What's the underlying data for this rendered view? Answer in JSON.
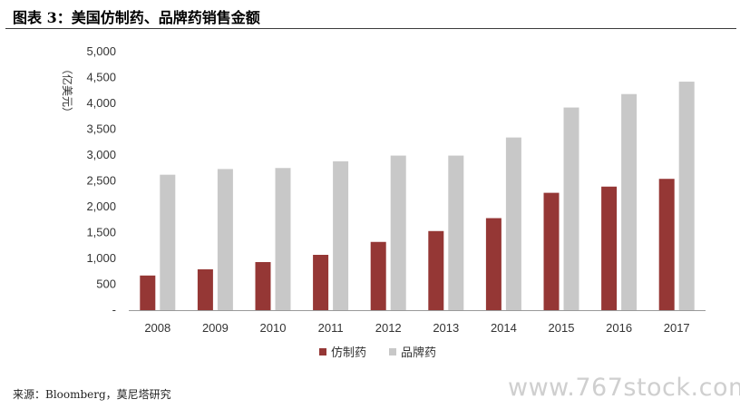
{
  "figure_title": "图表 3：美国仿制药、品牌药销售金额",
  "source_note": "来源：Bloomberg，莫尼塔研究",
  "watermark": "www.767stock.com",
  "chart_data": {
    "type": "bar",
    "title": "",
    "xlabel": "",
    "ylabel": "（亿美元）",
    "ylim": [
      0,
      5000
    ],
    "y_ticks": [
      0,
      500,
      1000,
      1500,
      2000,
      2500,
      3000,
      3500,
      4000,
      4500,
      5000
    ],
    "y_tick_labels": [
      "-",
      "500",
      "1,000",
      "1,500",
      "2,000",
      "2,500",
      "3,000",
      "3,500",
      "4,000",
      "4,500",
      "5,000"
    ],
    "categories": [
      "2008",
      "2009",
      "2010",
      "2011",
      "2012",
      "2013",
      "2014",
      "2015",
      "2016",
      "2017"
    ],
    "series": [
      {
        "name": "仿制药",
        "color": "#953735",
        "values": [
          670,
          790,
          930,
          1070,
          1320,
          1530,
          1780,
          2270,
          2390,
          2540
        ]
      },
      {
        "name": "品牌药",
        "color": "#c8c8c8",
        "values": [
          2620,
          2730,
          2750,
          2880,
          2990,
          2990,
          3340,
          3920,
          4180,
          4420
        ]
      }
    ],
    "grid": false,
    "legend_position": "bottom"
  }
}
